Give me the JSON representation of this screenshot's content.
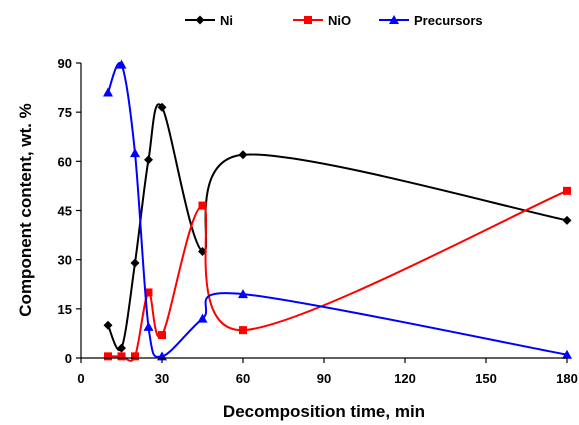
{
  "chart_data": {
    "type": "line",
    "xlabel": "Decomposition time, min",
    "ylabel": "Component content, wt. %",
    "xlim": [
      0,
      180
    ],
    "ylim": [
      0,
      90
    ],
    "x_ticks": [
      0,
      30,
      60,
      90,
      120,
      150,
      180
    ],
    "y_ticks": [
      0,
      15,
      30,
      45,
      60,
      75,
      90
    ],
    "x_tick_labels": [
      "0",
      "30",
      "60",
      "90",
      "120",
      "150",
      "180"
    ],
    "y_tick_labels": [
      "0",
      "15",
      "30",
      "45",
      "60",
      "75",
      "90"
    ],
    "grid": false,
    "legend_position": "top",
    "series": [
      {
        "name": "Ni",
        "color": "#000000",
        "marker": "diamond",
        "points": [
          [
            10,
            10
          ],
          [
            15,
            3
          ],
          [
            20,
            29
          ],
          [
            25,
            60.5
          ],
          [
            30,
            76.5
          ],
          [
            45,
            32.5
          ],
          [
            60,
            62
          ],
          [
            180,
            42
          ]
        ]
      },
      {
        "name": "NiO",
        "color": "#ff0000",
        "marker": "square",
        "points": [
          [
            10,
            0.5
          ],
          [
            15,
            0.5
          ],
          [
            20,
            0.5
          ],
          [
            25,
            20
          ],
          [
            30,
            7
          ],
          [
            45,
            46.5
          ],
          [
            60,
            8.5
          ],
          [
            180,
            51
          ]
        ]
      },
      {
        "name": "Precursors",
        "color": "#0000ff",
        "marker": "triangle",
        "points": [
          [
            10,
            81
          ],
          [
            15,
            89.5
          ],
          [
            20,
            62.5
          ],
          [
            25,
            9.5
          ],
          [
            30,
            0.5
          ],
          [
            45,
            12
          ],
          [
            60,
            19.5
          ],
          [
            180,
            1
          ]
        ]
      }
    ]
  }
}
